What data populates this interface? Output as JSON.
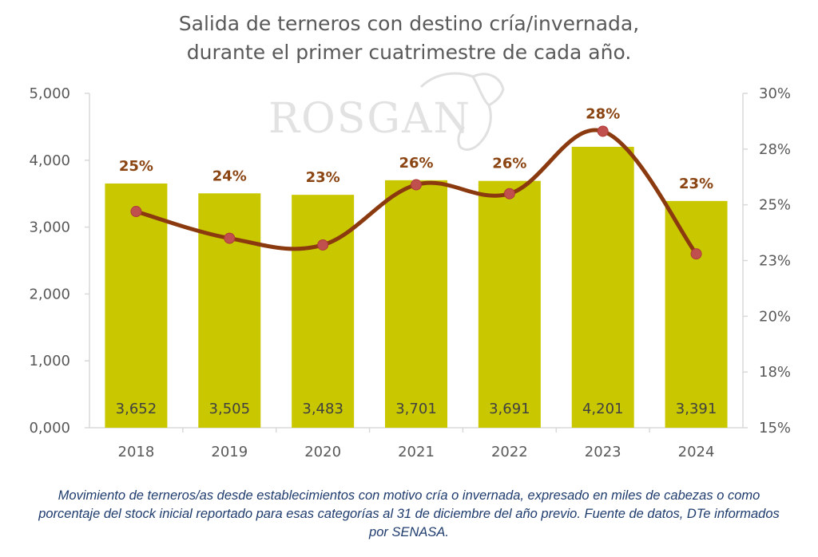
{
  "title_line1": "Salida de terneros con destino cría/invernada,",
  "title_line2": "durante el primer cuatrimestre de cada año.",
  "watermark": "ROSGAN",
  "caption": "Movimiento de terneros/as desde establecimientos con motivo cría o invernada, expresado en miles de cabezas o como porcentaje del stock inicial reportado para esas categorías al 31 de diciembre del año previo. Fuente de datos, DTe informados por SENASA.",
  "colors": {
    "bar": "#c9c800",
    "line": "#8b3a0f",
    "marker": "#c0504d",
    "pct_label": "#8b4513"
  },
  "chart_data": {
    "type": "bar",
    "categories": [
      "2018",
      "2019",
      "2020",
      "2021",
      "2022",
      "2023",
      "2024"
    ],
    "series": [
      {
        "values": [
          3652,
          3505,
          3483,
          3701,
          3691,
          4201,
          3391
        ],
        "labels": [
          "3,652",
          "3,505",
          "3,483",
          "3,701",
          "3,691",
          "4,201",
          "3,391"
        ],
        "axis": "left",
        "type": "bar"
      },
      {
        "values": [
          24.7,
          23.5,
          23.2,
          25.9,
          25.5,
          28.3,
          22.8
        ],
        "labels": [
          "25%",
          "24%",
          "23%",
          "26%",
          "26%",
          "28%",
          "23%"
        ],
        "axis": "right",
        "type": "line"
      }
    ],
    "y_left": {
      "ylim": [
        0,
        5000
      ],
      "ticks": [
        "0,000",
        "1,000",
        "2,000",
        "3,000",
        "4,000",
        "5,000"
      ]
    },
    "y_right": {
      "ylim": [
        15,
        30
      ],
      "ticks": [
        "15%",
        "18%",
        "20%",
        "23%",
        "25%",
        "28%",
        "30%"
      ]
    },
    "grid": false
  }
}
